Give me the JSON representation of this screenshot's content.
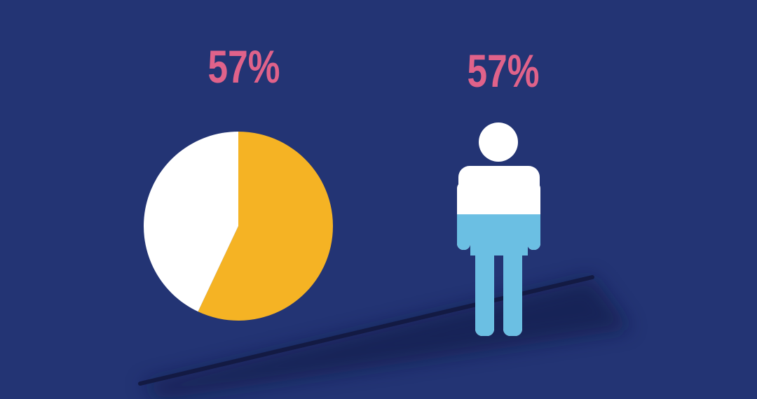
{
  "chart_data": [
    {
      "type": "pie",
      "values": [
        57,
        43
      ],
      "value_labels": [
        "57%",
        null
      ],
      "colors": [
        "#f5b324",
        "#ffffff"
      ]
    },
    {
      "type": "pictogram",
      "values": [
        57
      ],
      "value_labels": [
        "57%"
      ],
      "fill_color": "#6bbfe3",
      "empty_color": "#ffffff",
      "ylim": [
        0,
        100
      ]
    }
  ]
}
